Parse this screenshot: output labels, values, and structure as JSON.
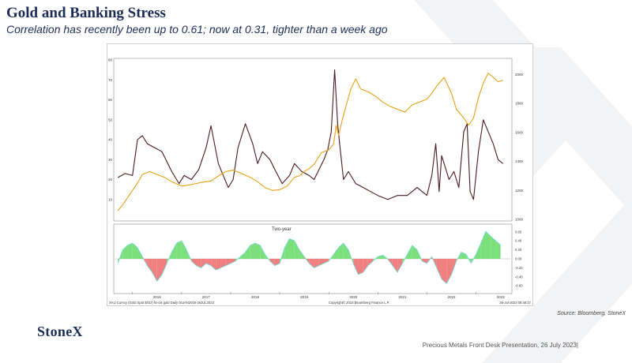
{
  "slide": {
    "title": "Gold and Banking Stress",
    "subtitle": "Correlation has recently been up to 0.61; now at 0.31, tighter than a week ago",
    "source": "Source: Bloomberg, StoneX",
    "logo": "StoneX",
    "footer": "Precious Metals Front Desk Presentation, 26 July 2023|"
  },
  "chart_data": [
    {
      "type": "line",
      "series": [
        {
          "color": "#4a1a1e",
          "axis": "left",
          "x": [
            2015.7,
            2015.85,
            2016.0,
            2016.1,
            2016.2,
            2016.3,
            2016.45,
            2016.6,
            2016.8,
            2016.95,
            2017.05,
            2017.2,
            2017.35,
            2017.5,
            2017.6,
            2017.75,
            2017.85,
            2017.95,
            2018.05,
            2018.15,
            2018.3,
            2018.45,
            2018.55,
            2018.65,
            2018.8,
            2018.9,
            2019.05,
            2019.2,
            2019.3,
            2019.45,
            2019.6,
            2019.7,
            2019.8,
            2019.9,
            2019.98,
            2020.05,
            2020.12,
            2020.18,
            2020.22,
            2020.3,
            2020.4,
            2020.55,
            2020.7,
            2020.85,
            2021.0,
            2021.2,
            2021.4,
            2021.6,
            2021.8,
            2022.0,
            2022.1,
            2022.18,
            2022.25,
            2022.3,
            2022.45,
            2022.55,
            2022.65,
            2022.75,
            2022.82,
            2022.88,
            2022.95,
            2023.05,
            2023.15,
            2023.25,
            2023.35,
            2023.45,
            2023.55
          ],
          "values": [
            21,
            23,
            22,
            40,
            42,
            38,
            36,
            34,
            24,
            18,
            22,
            20,
            25,
            36,
            47,
            28,
            22,
            16,
            20,
            36,
            48,
            38,
            28,
            34,
            30,
            25,
            18,
            22,
            28,
            24,
            22,
            20,
            25,
            30,
            35,
            44,
            75,
            48,
            38,
            20,
            24,
            18,
            16,
            14,
            12,
            10,
            12,
            12,
            16,
            12,
            22,
            38,
            14,
            32,
            20,
            24,
            16,
            44,
            48,
            14,
            10,
            34,
            50,
            44,
            38,
            30,
            28
          ]
        },
        {
          "color": "#e8a11a",
          "axis": "right",
          "x": [
            2015.7,
            2015.8,
            2015.9,
            2016.0,
            2016.1,
            2016.2,
            2016.35,
            2016.5,
            2016.65,
            2016.8,
            2017.0,
            2017.2,
            2017.4,
            2017.6,
            2017.75,
            2017.9,
            2018.05,
            2018.2,
            2018.4,
            2018.55,
            2018.7,
            2018.85,
            2019.0,
            2019.15,
            2019.3,
            2019.4,
            2019.5,
            2019.6,
            2019.7,
            2019.85,
            2020.0,
            2020.1,
            2020.15,
            2020.2,
            2020.3,
            2020.45,
            2020.55,
            2020.65,
            2020.8,
            2020.95,
            2021.1,
            2021.25,
            2021.4,
            2021.55,
            2021.7,
            2021.85,
            2022.0,
            2022.1,
            2022.2,
            2022.35,
            2022.5,
            2022.6,
            2022.75,
            2022.85,
            2022.95,
            2023.05,
            2023.15,
            2023.25,
            2023.35,
            2023.45,
            2023.55
          ],
          "values": [
            1060,
            1100,
            1150,
            1200,
            1250,
            1310,
            1330,
            1310,
            1290,
            1260,
            1230,
            1240,
            1255,
            1265,
            1300,
            1330,
            1340,
            1320,
            1290,
            1260,
            1220,
            1200,
            1205,
            1230,
            1290,
            1300,
            1330,
            1350,
            1380,
            1460,
            1480,
            1520,
            1650,
            1580,
            1720,
            1900,
            1970,
            1900,
            1880,
            1850,
            1810,
            1780,
            1760,
            1740,
            1790,
            1810,
            1830,
            1870,
            1920,
            1980,
            1870,
            1760,
            1700,
            1650,
            1700,
            1840,
            1940,
            2010,
            1980,
            1950,
            1960
          ]
        }
      ],
      "left_ticks": [
        "10",
        "20",
        "30",
        "40",
        "50",
        "60",
        "70",
        "80"
      ],
      "right_ticks": [
        "1000",
        "1200",
        "1400",
        "1600",
        "1800",
        "2000"
      ],
      "ylim_left": [
        0,
        80
      ],
      "ylim_right": [
        1000,
        2100
      ]
    },
    {
      "type": "area",
      "annotation": "Two-year",
      "x_ticks": [
        "2016",
        "2017",
        "2018",
        "2019",
        "2020",
        "2021",
        "2022",
        "2023"
      ],
      "y_ticks": [
        "0.60",
        "0.40",
        "0.20",
        "0.00",
        "-0.20",
        "-0.40",
        "-0.60"
      ],
      "ylim": [
        -0.72,
        0.72
      ],
      "series": [
        {
          "color_positive": "#7be07b",
          "color_negative": "#f08080",
          "outline": "#6fd8d6",
          "x": [
            2015.7,
            2015.8,
            2015.9,
            2016.0,
            2016.1,
            2016.2,
            2016.3,
            2016.4,
            2016.5,
            2016.6,
            2016.7,
            2016.8,
            2016.9,
            2017.0,
            2017.1,
            2017.2,
            2017.3,
            2017.4,
            2017.5,
            2017.6,
            2017.7,
            2017.8,
            2017.9,
            2018.0,
            2018.1,
            2018.2,
            2018.3,
            2018.4,
            2018.5,
            2018.6,
            2018.7,
            2018.8,
            2018.9,
            2019.0,
            2019.1,
            2019.2,
            2019.3,
            2019.4,
            2019.5,
            2019.6,
            2019.7,
            2019.8,
            2019.9,
            2020.0,
            2020.1,
            2020.2,
            2020.3,
            2020.4,
            2020.5,
            2020.6,
            2020.7,
            2020.8,
            2020.9,
            2021.0,
            2021.1,
            2021.2,
            2021.3,
            2021.4,
            2021.5,
            2021.6,
            2021.7,
            2021.8,
            2021.9,
            2022.0,
            2022.1,
            2022.2,
            2022.3,
            2022.4,
            2022.5,
            2022.6,
            2022.7,
            2022.8,
            2022.9,
            2023.0,
            2023.1,
            2023.2,
            2023.3,
            2023.4,
            2023.5
          ],
          "values": [
            -0.1,
            0.2,
            0.3,
            0.35,
            0.25,
            0.05,
            -0.15,
            -0.3,
            -0.5,
            -0.35,
            -0.1,
            0.15,
            0.35,
            0.4,
            0.2,
            -0.05,
            -0.15,
            -0.2,
            -0.1,
            -0.15,
            -0.25,
            -0.2,
            -0.15,
            -0.1,
            -0.05,
            0.05,
            0.15,
            0.3,
            0.35,
            0.3,
            0.1,
            -0.05,
            -0.15,
            -0.1,
            0.25,
            0.45,
            0.4,
            0.2,
            0.05,
            -0.1,
            -0.2,
            -0.15,
            -0.1,
            -0.05,
            0.1,
            0.25,
            0.35,
            0.2,
            -0.1,
            -0.35,
            -0.3,
            -0.15,
            -0.05,
            0.05,
            0.08,
            0.0,
            -0.15,
            -0.3,
            -0.1,
            0.1,
            0.3,
            0.2,
            -0.05,
            -0.1,
            0.05,
            -0.2,
            -0.45,
            -0.55,
            -0.35,
            -0.05,
            0.15,
            0.1,
            -0.1,
            0.1,
            0.35,
            0.61,
            0.5,
            0.4,
            0.31
          ]
        }
      ]
    }
  ],
  "chart_footer": {
    "left": "XAU Curncy (Gold Spot $/Oz) fix-cls gold  Daily 04JAN2016-26JUL2023",
    "center": "Copyright© 2023 Bloomberg Finance L.P.",
    "right": "26-Jul-2023 08:45:17"
  }
}
